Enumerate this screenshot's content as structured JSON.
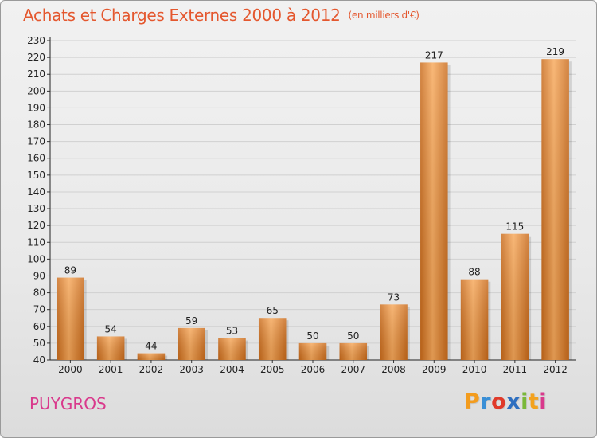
{
  "title": "Achats et Charges Externes 2000 à 2012",
  "subtitle": "(en milliers d'€)",
  "location": "PUYGROS",
  "logo": {
    "text": "Proxiti",
    "letters": [
      "P",
      "r",
      "o",
      "x",
      "i",
      "t",
      "i"
    ],
    "colors": [
      "#f39c1e",
      "#3a8fd6",
      "#e03a2a",
      "#2e6fc0",
      "#7ab83a",
      "#f3a21e",
      "#d9398c"
    ]
  },
  "colors": {
    "title": "#e4572e",
    "location": "#d9398c",
    "bar_light": "#f7a85a",
    "bar_dark": "#c96a1a",
    "grid": "#d0d0d0"
  },
  "chart_data": {
    "type": "bar",
    "title": "Achats et Charges Externes 2000 à 2012",
    "subtitle": "(en milliers d'€)",
    "categories": [
      "2000",
      "2001",
      "2002",
      "2003",
      "2004",
      "2005",
      "2006",
      "2007",
      "2008",
      "2009",
      "2010",
      "2011",
      "2012"
    ],
    "values": [
      89,
      54,
      44,
      59,
      53,
      65,
      50,
      50,
      73,
      217,
      88,
      115,
      219
    ],
    "data_labels": [
      "89",
      "54",
      "44",
      "59",
      "53",
      "65",
      "50",
      "50",
      "73",
      "217",
      "88",
      "115",
      "219"
    ],
    "ylim": [
      40,
      230
    ],
    "yticks": [
      "40",
      "50",
      "60",
      "70",
      "80",
      "90",
      "100",
      "110",
      "120",
      "130",
      "140",
      "150",
      "160",
      "170",
      "180",
      "190",
      "200",
      "210",
      "220",
      "230"
    ],
    "grid": true,
    "legend": "none"
  }
}
